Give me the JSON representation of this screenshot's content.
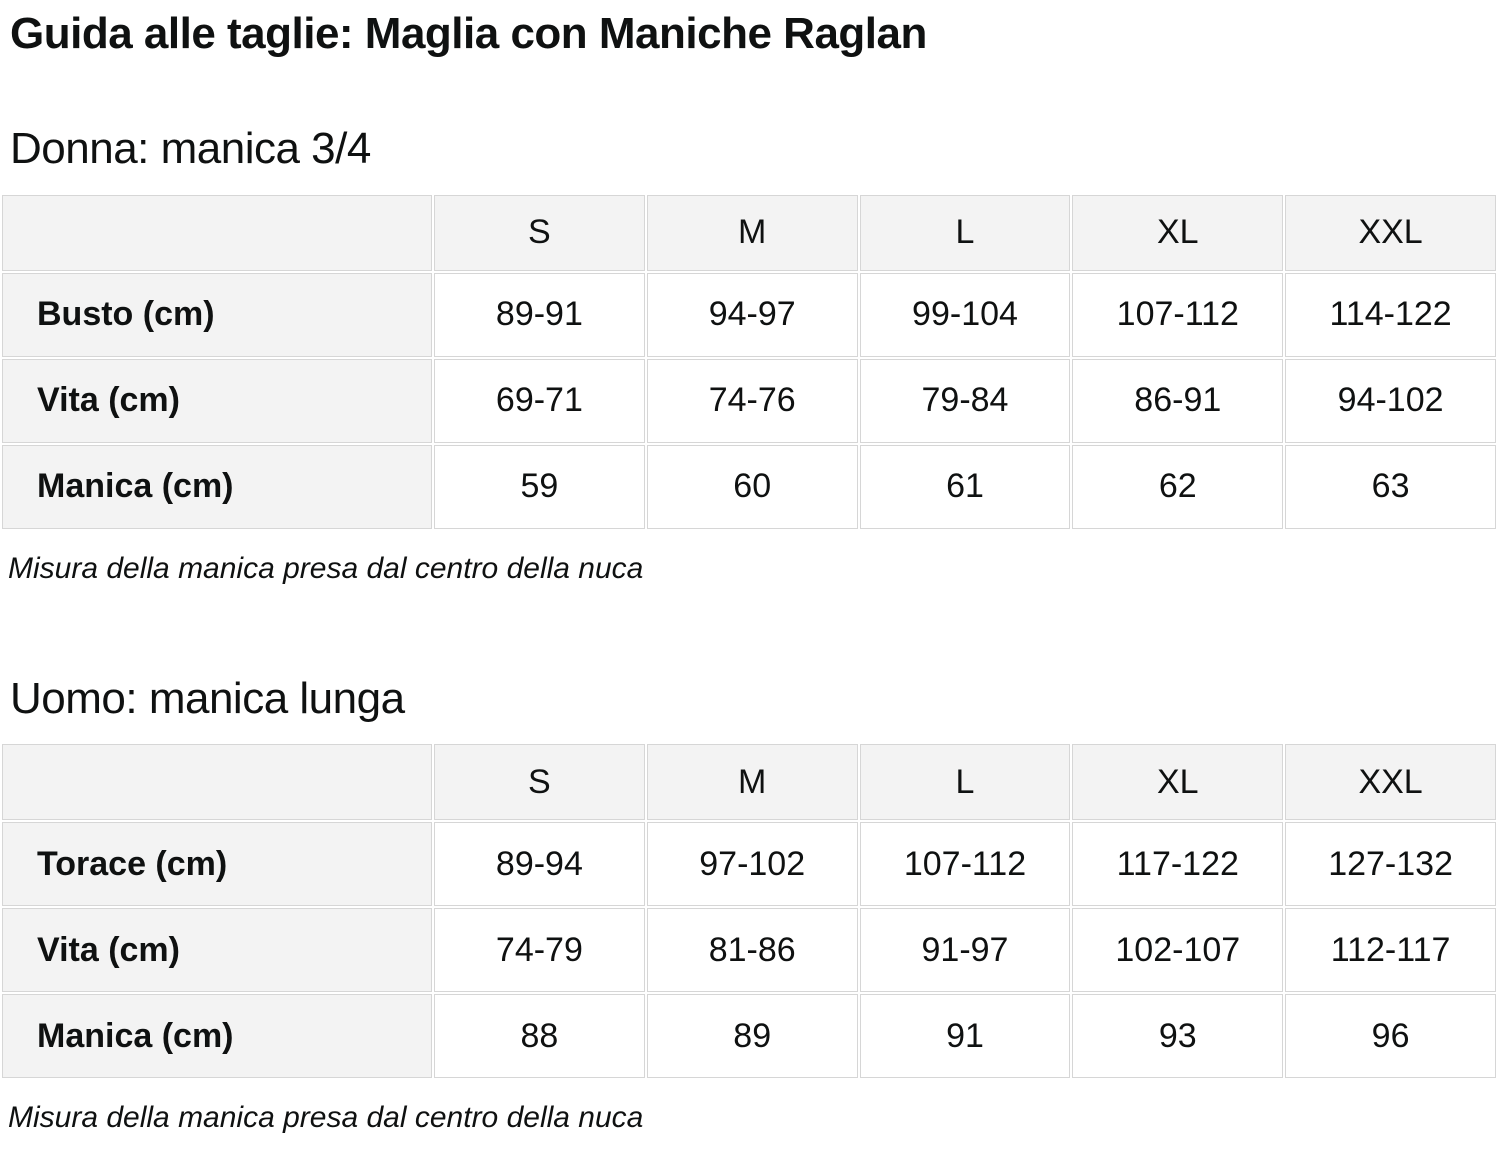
{
  "page": {
    "title": "Guida alle taglie: Maglia con Maniche Raglan"
  },
  "sections": [
    {
      "heading": "Donna: manica 3/4",
      "table": {
        "columns": [
          "S",
          "M",
          "L",
          "XL",
          "XXL"
        ],
        "rows": [
          {
            "label": "Busto (cm)",
            "values": [
              "89-91",
              "94-97",
              "99-104",
              "107-112",
              "114-122"
            ]
          },
          {
            "label": "Vita (cm)",
            "values": [
              "69-71",
              "74-76",
              "79-84",
              "86-91",
              "94-102"
            ]
          },
          {
            "label": "Manica (cm)",
            "values": [
              "59",
              "60",
              "61",
              "62",
              "63"
            ]
          }
        ]
      },
      "note": "Misura della manica presa dal centro della nuca"
    },
    {
      "heading": "Uomo: manica lunga",
      "table": {
        "columns": [
          "S",
          "M",
          "L",
          "XL",
          "XXL"
        ],
        "rows": [
          {
            "label": "Torace (cm)",
            "values": [
              "89-94",
              "97-102",
              "107-112",
              "117-122",
              "127-132"
            ]
          },
          {
            "label": "Vita (cm)",
            "values": [
              "74-79",
              "81-86",
              "91-97",
              "102-107",
              "112-117"
            ]
          },
          {
            "label": "Manica (cm)",
            "values": [
              "88",
              "89",
              "91",
              "93",
              "96"
            ]
          }
        ]
      },
      "note": "Misura della manica presa dal centro della nuca"
    }
  ],
  "colors": {
    "page_bg": "#ffffff",
    "header_bg": "#f3f3f3",
    "cell_border": "#d6d6d6",
    "text": "#0f1111"
  }
}
